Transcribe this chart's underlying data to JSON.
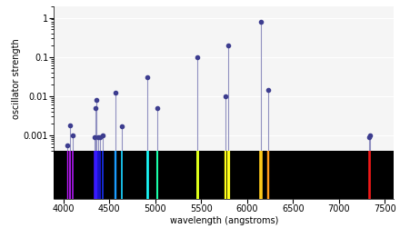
{
  "title": "",
  "xlabel": "wavelength (angstroms)",
  "ylabel": "oscillator strength",
  "xlim": [
    3900,
    7600
  ],
  "ylim_log": [
    0.0004,
    2.0
  ],
  "lines": [
    {
      "wl": 4047.0,
      "strength": 0.00054
    },
    {
      "wl": 4078.0,
      "strength": 0.0018
    },
    {
      "wl": 4108.0,
      "strength": 0.001
    },
    {
      "wl": 4339.0,
      "strength": 0.0009
    },
    {
      "wl": 4348.0,
      "strength": 0.005
    },
    {
      "wl": 4358.0,
      "strength": 0.0078
    },
    {
      "wl": 4380.0,
      "strength": 0.0009
    },
    {
      "wl": 4399.0,
      "strength": 0.0009
    },
    {
      "wl": 4435.0,
      "strength": 0.001
    },
    {
      "wl": 4571.0,
      "strength": 0.012
    },
    {
      "wl": 4641.0,
      "strength": 0.0017
    },
    {
      "wl": 4916.0,
      "strength": 0.03
    },
    {
      "wl": 5025.0,
      "strength": 0.005
    },
    {
      "wl": 5461.0,
      "strength": 0.1
    },
    {
      "wl": 5770.0,
      "strength": 0.01
    },
    {
      "wl": 5791.0,
      "strength": 0.2
    },
    {
      "wl": 6150.0,
      "strength": 0.8
    },
    {
      "wl": 6234.0,
      "strength": 0.014
    },
    {
      "wl": 7326.0,
      "strength": 0.0009
    },
    {
      "wl": 7341.0,
      "strength": 0.001
    }
  ],
  "dot_color": "#3d3d8f",
  "line_color": "#9090c0",
  "background_color": "#ffffff",
  "top_bg": "#f5f5f5",
  "spectrum_bg": "#000000",
  "grid_color": "#ffffff",
  "yticks": [
    0.001,
    0.01,
    0.1,
    1
  ],
  "xticks": [
    4000,
    4500,
    5000,
    5500,
    6000,
    6500,
    7000,
    7500
  ]
}
